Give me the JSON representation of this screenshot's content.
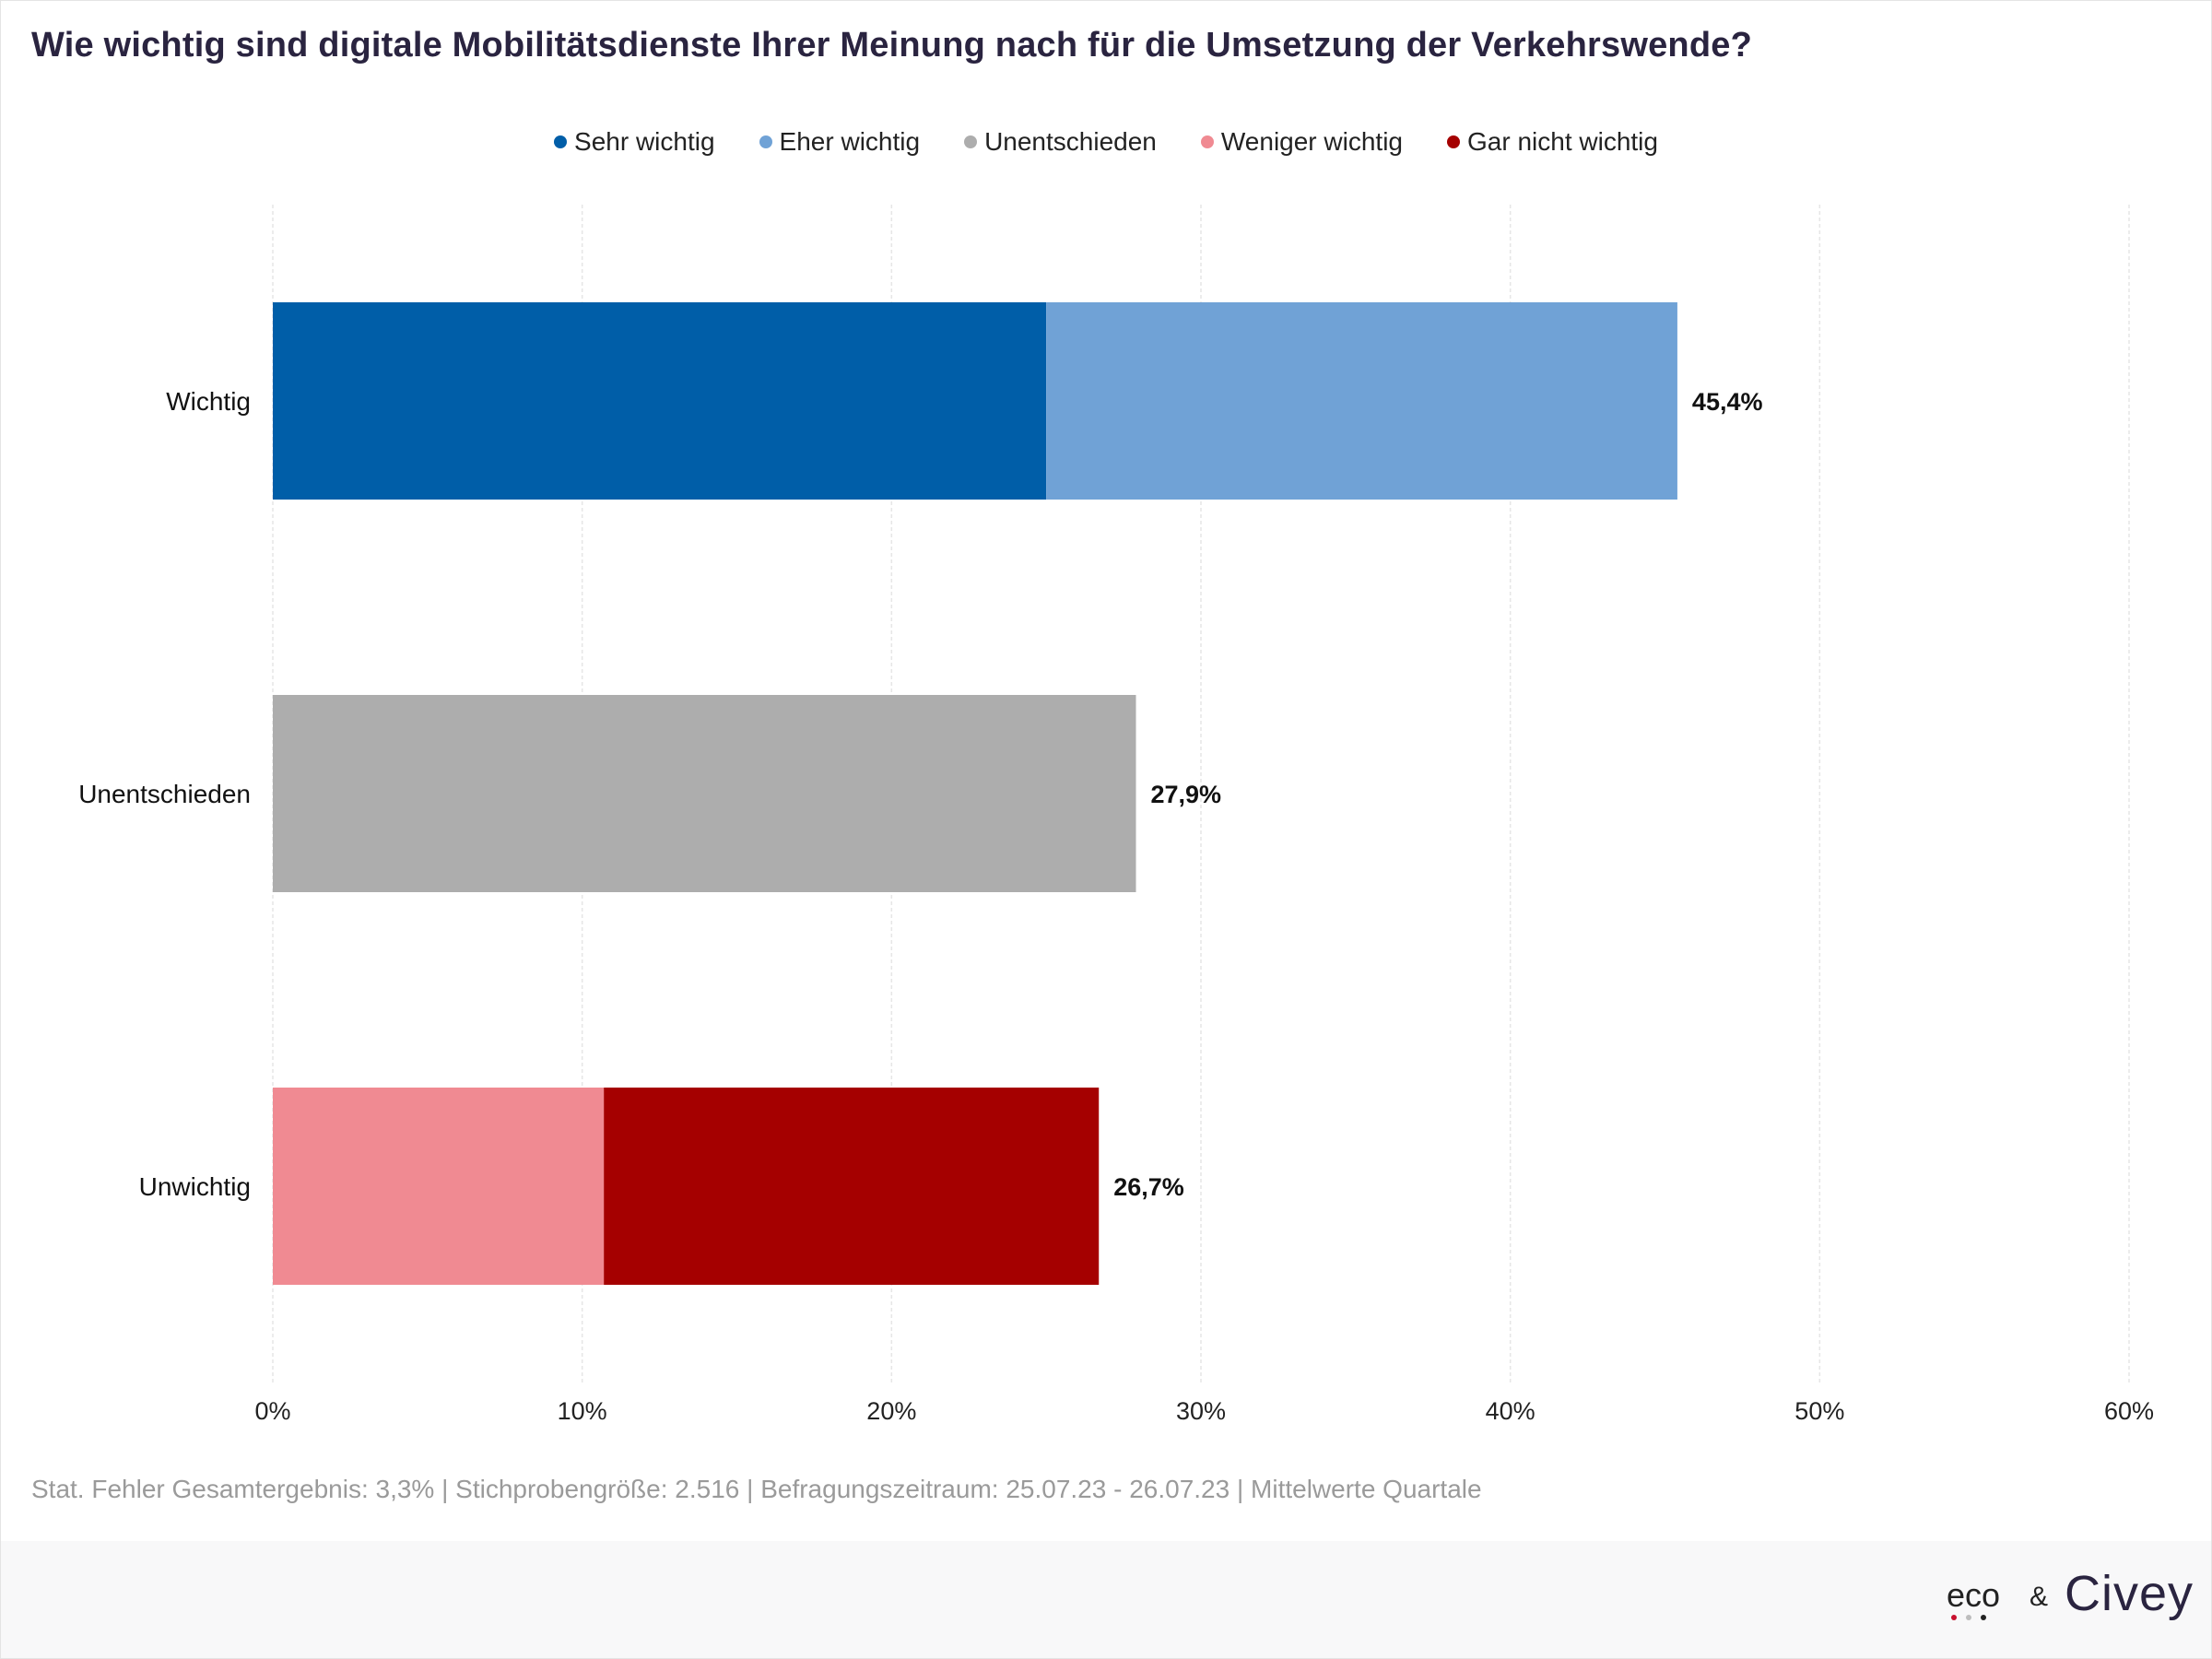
{
  "title": "Wie wichtig sind digitale Mobilitätsdienste Ihrer Meinung nach für die Umsetzung der Verkehrswende?",
  "legend": [
    {
      "label": "Sehr wichtig",
      "color": "#005ea8"
    },
    {
      "label": "Eher wichtig",
      "color": "#70a2d6"
    },
    {
      "label": "Unentschieden",
      "color": "#adadad"
    },
    {
      "label": "Weniger wichtig",
      "color": "#f08a92"
    },
    {
      "label": "Gar nicht wichtig",
      "color": "#a50000"
    }
  ],
  "chart_data": {
    "type": "bar",
    "orientation": "horizontal",
    "stacked": true,
    "categories": [
      "Wichtig",
      "Unentschieden",
      "Unwichtig"
    ],
    "series": [
      {
        "name": "Sehr wichtig",
        "values": [
          25.0,
          0,
          0
        ]
      },
      {
        "name": "Eher wichtig",
        "values": [
          20.4,
          0,
          0
        ]
      },
      {
        "name": "Unentschieden",
        "values": [
          0,
          27.9,
          0
        ]
      },
      {
        "name": "Weniger wichtig",
        "values": [
          0,
          0,
          10.7
        ]
      },
      {
        "name": "Gar nicht wichtig",
        "values": [
          0,
          0,
          16.0
        ]
      }
    ],
    "totals": [
      "45,4%",
      "27,9%",
      "26,7%"
    ],
    "xlim": [
      0,
      60
    ],
    "xticks": [
      "0%",
      "10%",
      "20%",
      "30%",
      "40%",
      "50%",
      "60%"
    ],
    "grid": true,
    "legend_position": "top-center"
  },
  "footnote": "Stat. Fehler Gesamtergebnis: 3,3% | Stichprobengröße: 2.516 | Befragungszeitraum: 25.07.23 - 26.07.23 | Mittelwerte Quartale",
  "logos": {
    "eco": "eco",
    "amp": "&",
    "civey": "Civey"
  }
}
